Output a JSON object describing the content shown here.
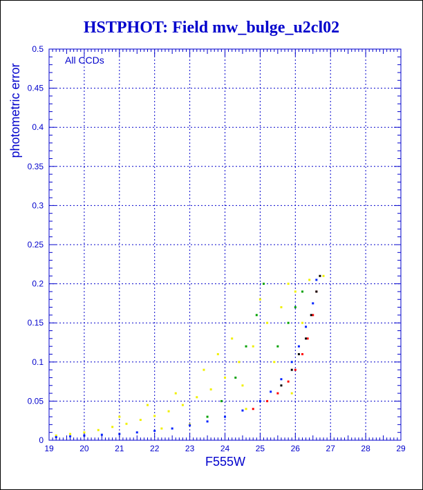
{
  "chart_data": {
    "type": "scatter",
    "title": "HSTPHOT: Field mw_bulge_u2cl02",
    "xlabel": "F555W",
    "ylabel": "photometric error",
    "annotation": "All CCDs",
    "xlim": [
      19,
      29
    ],
    "ylim": [
      0,
      0.5
    ],
    "x_ticks": [
      19,
      20,
      21,
      22,
      23,
      24,
      25,
      26,
      27,
      28,
      29
    ],
    "y_ticks": [
      0,
      0.05,
      0.1,
      0.15,
      0.2,
      0.25,
      0.3,
      0.35,
      0.4,
      0.45,
      0.5
    ],
    "y_tick_labels": [
      "0",
      "0.05",
      "0.1",
      "0.15",
      "0.2",
      "0.25",
      "0.3",
      "0.35",
      "0.4",
      "0.45",
      "0.5"
    ],
    "grid": true,
    "colors": {
      "axis": "#0000cc",
      "grid": "#0000cc",
      "yellow": "#f0f000",
      "blue": "#0022ff",
      "red": "#ff0000",
      "green": "#00a000",
      "black": "#000000"
    },
    "series": [
      {
        "color_key": "yellow",
        "x": [
          19.2,
          19.6,
          20.0,
          20.4,
          20.8,
          21.2,
          21.6,
          22.0,
          22.4,
          22.8,
          23.2,
          23.6,
          24.0,
          24.4,
          24.8,
          25.2,
          25.6,
          26.0,
          26.4,
          26.8,
          21.0,
          21.8,
          22.6,
          23.4,
          24.2,
          25.0,
          25.8,
          24.5,
          23.8,
          25.4,
          26.2,
          22.2,
          23.0,
          24.6,
          25.9
        ],
        "y": [
          0.006,
          0.008,
          0.01,
          0.013,
          0.017,
          0.021,
          0.026,
          0.031,
          0.037,
          0.045,
          0.055,
          0.065,
          0.08,
          0.1,
          0.12,
          0.15,
          0.17,
          0.19,
          0.205,
          0.21,
          0.03,
          0.045,
          0.06,
          0.09,
          0.13,
          0.18,
          0.2,
          0.07,
          0.11,
          0.1,
          0.15,
          0.015,
          0.02,
          0.04,
          0.06
        ]
      },
      {
        "color_key": "blue",
        "x": [
          19.2,
          19.6,
          20.0,
          20.5,
          21.0,
          21.5,
          22.0,
          22.5,
          23.0,
          23.5,
          24.0,
          24.5,
          25.0,
          25.3,
          25.6,
          25.9,
          26.1,
          26.3,
          26.5,
          26.6
        ],
        "y": [
          0.004,
          0.005,
          0.006,
          0.007,
          0.008,
          0.01,
          0.012,
          0.015,
          0.019,
          0.024,
          0.03,
          0.038,
          0.05,
          0.062,
          0.078,
          0.1,
          0.12,
          0.145,
          0.175,
          0.205
        ]
      },
      {
        "color_key": "red",
        "x": [
          24.8,
          25.2,
          25.5,
          25.8,
          26.0,
          26.2,
          26.35,
          26.5,
          26.6
        ],
        "y": [
          0.04,
          0.05,
          0.06,
          0.075,
          0.09,
          0.11,
          0.13,
          0.16,
          0.19
        ]
      },
      {
        "color_key": "green",
        "x": [
          23.5,
          23.9,
          24.3,
          24.6,
          24.9,
          25.1,
          25.5,
          25.8,
          26.0,
          26.2
        ],
        "y": [
          0.03,
          0.05,
          0.08,
          0.12,
          0.16,
          0.2,
          0.12,
          0.15,
          0.17,
          0.19
        ]
      },
      {
        "color_key": "black",
        "x": [
          25.6,
          25.9,
          26.1,
          26.3,
          26.45,
          26.6,
          26.7
        ],
        "y": [
          0.07,
          0.09,
          0.11,
          0.13,
          0.16,
          0.19,
          0.21
        ]
      }
    ]
  }
}
